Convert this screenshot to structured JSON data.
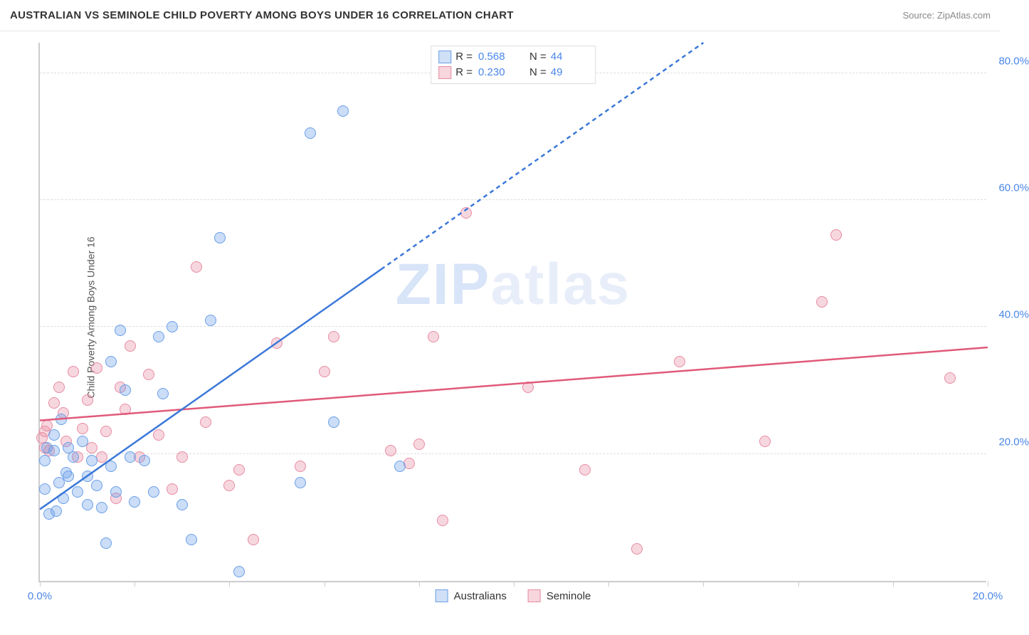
{
  "header": {
    "title": "AUSTRALIAN VS SEMINOLE CHILD POVERTY AMONG BOYS UNDER 16 CORRELATION CHART",
    "source_prefix": "Source: ",
    "source_link": "ZipAtlas.com"
  },
  "chart": {
    "type": "scatter",
    "y_label": "Child Poverty Among Boys Under 16",
    "background_color": "#ffffff",
    "grid_color": "#dddddd",
    "axis_color": "#cccccc",
    "tick_label_color": "#4a86e8",
    "x_axis": {
      "min": 0,
      "max": 20,
      "ticks": [
        0,
        2,
        4,
        6,
        8,
        10,
        12,
        14,
        16,
        18,
        20
      ],
      "labeled_ticks": [
        0,
        20
      ],
      "label_suffix": "%"
    },
    "y_axis": {
      "min": 0,
      "max": 85,
      "ticks": [
        20,
        40,
        60,
        80
      ],
      "label_suffix": "%"
    },
    "watermark": {
      "text_a": "ZIP",
      "text_b": "atlas"
    },
    "legend_top": {
      "rows": [
        {
          "swatch_fill": "#cfe0f7",
          "swatch_border": "#6b9fe8",
          "r_label": "R =",
          "r_value": "0.568",
          "n_label": "N =",
          "n_value": "44"
        },
        {
          "swatch_fill": "#f7d6de",
          "swatch_border": "#e88ba3",
          "r_label": "R =",
          "r_value": "0.230",
          "n_label": "N =",
          "n_value": "49"
        }
      ]
    },
    "legend_bottom": {
      "items": [
        {
          "swatch_fill": "#cfe0f7",
          "swatch_border": "#6b9fe8",
          "label": "Australians"
        },
        {
          "swatch_fill": "#f7d6de",
          "swatch_border": "#e88ba3",
          "label": "Seminole"
        }
      ]
    },
    "series": {
      "australians": {
        "fill": "rgba(107,159,232,0.35)",
        "stroke": "#6b9fe8",
        "marker_radius": 8,
        "trend": {
          "color": "#3b78d8",
          "width": 2.5,
          "dash_from_x": 7.2,
          "x1": 0,
          "y1": 11.5,
          "x2": 14,
          "y2": 85
        },
        "points": [
          [
            0.1,
            14.5
          ],
          [
            0.1,
            19.0
          ],
          [
            0.15,
            21.0
          ],
          [
            0.2,
            10.5
          ],
          [
            0.3,
            23.0
          ],
          [
            0.3,
            20.5
          ],
          [
            0.35,
            11.0
          ],
          [
            0.4,
            15.5
          ],
          [
            0.45,
            25.5
          ],
          [
            0.5,
            13.0
          ],
          [
            0.55,
            17.0
          ],
          [
            0.6,
            16.5
          ],
          [
            0.6,
            21.0
          ],
          [
            0.7,
            19.5
          ],
          [
            0.8,
            14.0
          ],
          [
            0.9,
            22.0
          ],
          [
            1.0,
            16.5
          ],
          [
            1.0,
            12.0
          ],
          [
            1.1,
            19.0
          ],
          [
            1.2,
            15.0
          ],
          [
            1.3,
            11.5
          ],
          [
            1.4,
            6.0
          ],
          [
            1.5,
            18.0
          ],
          [
            1.5,
            34.5
          ],
          [
            1.6,
            14.0
          ],
          [
            1.7,
            39.5
          ],
          [
            1.8,
            30.0
          ],
          [
            1.9,
            19.5
          ],
          [
            2.0,
            12.5
          ],
          [
            2.2,
            19.0
          ],
          [
            2.4,
            14.0
          ],
          [
            2.5,
            38.5
          ],
          [
            2.6,
            29.5
          ],
          [
            2.8,
            40.0
          ],
          [
            3.0,
            12.0
          ],
          [
            3.2,
            6.5
          ],
          [
            3.6,
            41.0
          ],
          [
            3.8,
            54.0
          ],
          [
            4.2,
            1.5
          ],
          [
            5.5,
            15.5
          ],
          [
            5.7,
            70.5
          ],
          [
            6.2,
            25.0
          ],
          [
            6.4,
            74.0
          ],
          [
            7.6,
            18.0
          ]
        ]
      },
      "seminole": {
        "fill": "rgba(232,139,163,0.35)",
        "stroke": "#e88ba3",
        "marker_radius": 8,
        "trend": {
          "color": "#e05a7a",
          "width": 2.5,
          "x1": 0,
          "y1": 25.5,
          "x2": 20,
          "y2": 37.0
        },
        "points": [
          [
            0.05,
            22.5
          ],
          [
            0.1,
            21.0
          ],
          [
            0.1,
            23.5
          ],
          [
            0.15,
            24.5
          ],
          [
            0.2,
            20.5
          ],
          [
            0.3,
            28.0
          ],
          [
            0.4,
            30.5
          ],
          [
            0.5,
            26.5
          ],
          [
            0.55,
            22.0
          ],
          [
            0.7,
            33.0
          ],
          [
            0.8,
            19.5
          ],
          [
            0.9,
            24.0
          ],
          [
            1.0,
            28.5
          ],
          [
            1.1,
            21.0
          ],
          [
            1.2,
            33.5
          ],
          [
            1.3,
            19.5
          ],
          [
            1.4,
            23.5
          ],
          [
            1.6,
            13.0
          ],
          [
            1.7,
            30.5
          ],
          [
            1.8,
            27.0
          ],
          [
            1.9,
            37.0
          ],
          [
            2.1,
            19.5
          ],
          [
            2.3,
            32.5
          ],
          [
            2.5,
            23.0
          ],
          [
            2.8,
            14.5
          ],
          [
            3.0,
            19.5
          ],
          [
            3.3,
            49.5
          ],
          [
            3.5,
            25.0
          ],
          [
            4.0,
            15.0
          ],
          [
            4.2,
            17.5
          ],
          [
            4.5,
            6.5
          ],
          [
            5.0,
            37.5
          ],
          [
            5.5,
            18.0
          ],
          [
            6.0,
            33.0
          ],
          [
            6.2,
            38.5
          ],
          [
            7.4,
            20.5
          ],
          [
            7.8,
            18.5
          ],
          [
            8.0,
            21.5
          ],
          [
            8.3,
            38.5
          ],
          [
            8.5,
            9.5
          ],
          [
            9.0,
            58.0
          ],
          [
            10.3,
            30.5
          ],
          [
            11.5,
            17.5
          ],
          [
            12.6,
            5.0
          ],
          [
            13.5,
            34.5
          ],
          [
            15.3,
            22.0
          ],
          [
            16.5,
            44.0
          ],
          [
            16.8,
            54.5
          ],
          [
            19.2,
            32.0
          ]
        ]
      }
    }
  }
}
